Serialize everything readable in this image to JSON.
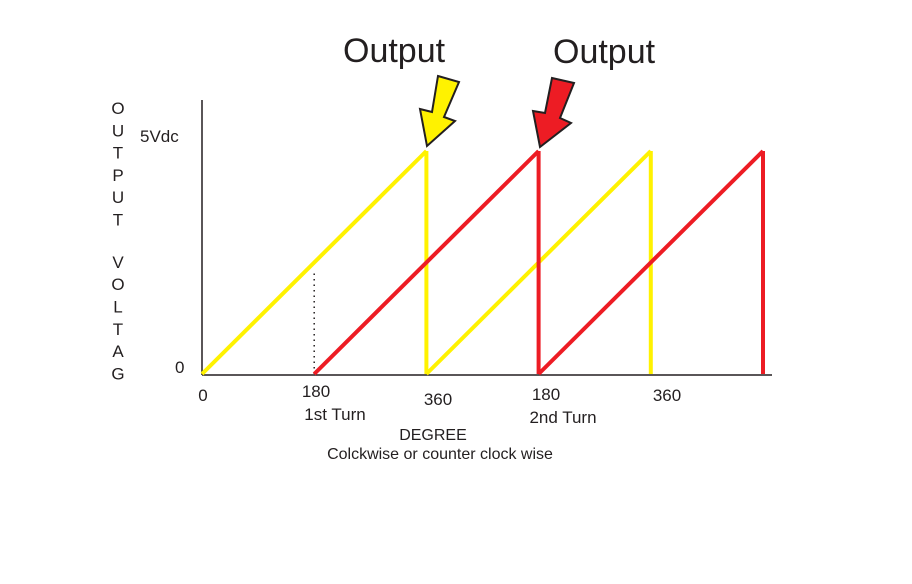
{
  "chart_data": {
    "type": "line",
    "ylabel": "OUTPUT VOLTAG",
    "xlabel": "DEGREE",
    "x_caption": "Colckwise or counter clock wise",
    "y_tick_labels": {
      "top": "5Vdc",
      "bottom": "0"
    },
    "ylim": [
      0,
      5
    ],
    "x_tick_labels": [
      {
        "label": "0"
      },
      {
        "label": "180",
        "sublabel": "1st Turn"
      },
      {
        "label": "360"
      },
      {
        "label": "180",
        "sublabel": "2nd Turn"
      },
      {
        "label": "360"
      }
    ],
    "annotations": [
      {
        "text": "Output",
        "color": "#fff200"
      },
      {
        "text": "Output",
        "color": "#ed1c24"
      }
    ],
    "series": [
      {
        "color": "#fff200",
        "x": [
          0,
          360,
          360,
          720,
          720
        ],
        "y": [
          0,
          5,
          0,
          5,
          0
        ]
      },
      {
        "color": "#ed1c24",
        "x": [
          180,
          540,
          540,
          900,
          900
        ],
        "y": [
          0,
          5,
          0,
          5,
          0
        ]
      }
    ],
    "reference_line": {
      "x": 180,
      "y_top": 2.3,
      "style": "dotted"
    }
  }
}
